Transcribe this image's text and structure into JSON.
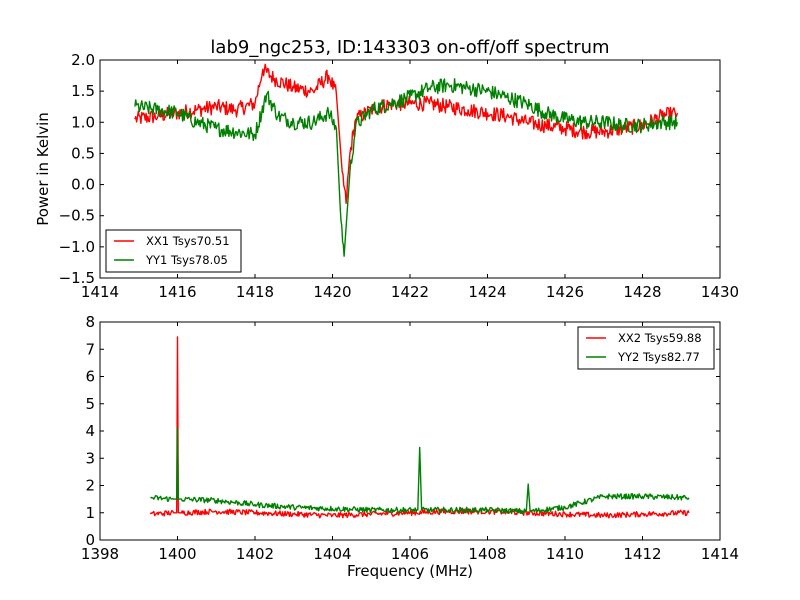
{
  "figure": {
    "title": "lab9_ngc253, ID:143303 on-off/off spectrum"
  },
  "chart_data": [
    {
      "type": "line",
      "title": "lab9_ngc253, ID:143303 on-off/off spectrum",
      "xlabel": "",
      "ylabel": "Power in Kelvin",
      "xlim": [
        1414,
        1430
      ],
      "ylim": [
        -1.5,
        2.0
      ],
      "xticks": [
        "1414",
        "1416",
        "1418",
        "1420",
        "1422",
        "1424",
        "1426",
        "1428",
        "1430"
      ],
      "yticks": [
        "−1.5",
        "−1.0",
        "−0.5",
        "0.0",
        "0.5",
        "1.0",
        "1.5",
        "2.0"
      ],
      "xtick_values": [
        1414,
        1416,
        1418,
        1420,
        1422,
        1424,
        1426,
        1428,
        1430
      ],
      "ytick_values": [
        -1.5,
        -1.0,
        -0.5,
        0.0,
        0.5,
        1.0,
        1.5,
        2.0
      ],
      "grid": false,
      "legend_position": "lower-left",
      "noise": 0.12,
      "series": [
        {
          "name": "XX1 Tsys70.51",
          "color": "#ff0000",
          "x": [
            1414.9,
            1415.5,
            1416.0,
            1416.5,
            1417.0,
            1417.5,
            1418.0,
            1418.2,
            1418.5,
            1419.0,
            1419.5,
            1419.9,
            1420.1,
            1420.25,
            1420.35,
            1420.45,
            1420.6,
            1421.0,
            1421.5,
            1422.0,
            1422.5,
            1423.0,
            1423.5,
            1424.0,
            1424.5,
            1425.0,
            1425.5,
            1426.0,
            1426.5,
            1427.0,
            1427.5,
            1428.0,
            1428.5,
            1428.9
          ],
          "y": [
            1.05,
            1.1,
            1.15,
            1.2,
            1.25,
            1.2,
            1.3,
            1.85,
            1.7,
            1.55,
            1.5,
            1.75,
            1.45,
            0.2,
            -0.3,
            0.5,
            1.05,
            1.2,
            1.3,
            1.3,
            1.3,
            1.25,
            1.2,
            1.15,
            1.1,
            1.0,
            0.95,
            0.9,
            0.85,
            0.85,
            0.9,
            0.95,
            1.1,
            1.15
          ]
        },
        {
          "name": "YY1 Tsys78.05",
          "color": "#008000",
          "x": [
            1414.9,
            1415.5,
            1416.0,
            1416.5,
            1417.0,
            1417.5,
            1418.0,
            1418.3,
            1418.6,
            1419.0,
            1419.5,
            1419.9,
            1420.1,
            1420.2,
            1420.3,
            1420.45,
            1420.6,
            1421.0,
            1421.5,
            1422.0,
            1422.5,
            1423.0,
            1423.5,
            1424.0,
            1424.5,
            1425.0,
            1425.5,
            1426.0,
            1426.5,
            1427.0,
            1427.5,
            1428.0,
            1428.5,
            1428.9
          ],
          "y": [
            1.25,
            1.2,
            1.15,
            1.0,
            0.9,
            0.85,
            0.8,
            1.45,
            1.1,
            1.0,
            1.0,
            1.15,
            0.9,
            -0.4,
            -1.15,
            0.2,
            0.95,
            1.2,
            1.3,
            1.4,
            1.55,
            1.6,
            1.55,
            1.5,
            1.4,
            1.3,
            1.15,
            1.05,
            1.0,
            1.0,
            0.95,
            0.95,
            1.0,
            1.0
          ]
        }
      ]
    },
    {
      "type": "line",
      "title": "",
      "xlabel": "Frequency (MHz)",
      "ylabel": "",
      "xlim": [
        1398,
        1414
      ],
      "ylim": [
        0,
        8
      ],
      "xticks": [
        "1398",
        "1400",
        "1402",
        "1404",
        "1406",
        "1408",
        "1410",
        "1412",
        "1414"
      ],
      "yticks": [
        "0",
        "1",
        "2",
        "3",
        "4",
        "5",
        "6",
        "7",
        "8"
      ],
      "xtick_values": [
        1398,
        1400,
        1402,
        1404,
        1406,
        1408,
        1410,
        1412,
        1414
      ],
      "ytick_values": [
        0,
        1,
        2,
        3,
        4,
        5,
        6,
        7,
        8
      ],
      "grid": false,
      "legend_position": "upper-right",
      "noise": 0.1,
      "series": [
        {
          "name": "XX2 Tsys59.88",
          "color": "#ff0000",
          "x": [
            1399.3,
            1399.9,
            1399.98,
            1400.0,
            1400.02,
            1400.1,
            1401.0,
            1402.0,
            1403.0,
            1404.0,
            1405.0,
            1406.0,
            1407.0,
            1408.0,
            1409.0,
            1410.0,
            1411.0,
            1412.0,
            1413.2
          ],
          "y": [
            0.95,
            1.0,
            1.0,
            7.45,
            1.0,
            1.0,
            1.05,
            1.0,
            0.95,
            0.9,
            0.95,
            1.0,
            1.05,
            1.05,
            1.0,
            0.95,
            0.9,
            0.95,
            1.0
          ]
        },
        {
          "name": "YY2 Tsys82.77",
          "color": "#008000",
          "x": [
            1399.3,
            1399.9,
            1399.98,
            1400.0,
            1400.02,
            1400.1,
            1401.0,
            1402.0,
            1403.0,
            1404.0,
            1405.0,
            1406.2,
            1406.25,
            1406.3,
            1407.0,
            1408.0,
            1409.0,
            1409.05,
            1409.1,
            1410.0,
            1411.0,
            1412.0,
            1413.2
          ],
          "y": [
            1.55,
            1.5,
            1.5,
            4.1,
            1.5,
            1.5,
            1.45,
            1.3,
            1.2,
            1.15,
            1.1,
            1.1,
            3.4,
            1.1,
            1.1,
            1.1,
            1.05,
            2.05,
            1.05,
            1.2,
            1.6,
            1.6,
            1.55
          ]
        }
      ]
    }
  ]
}
